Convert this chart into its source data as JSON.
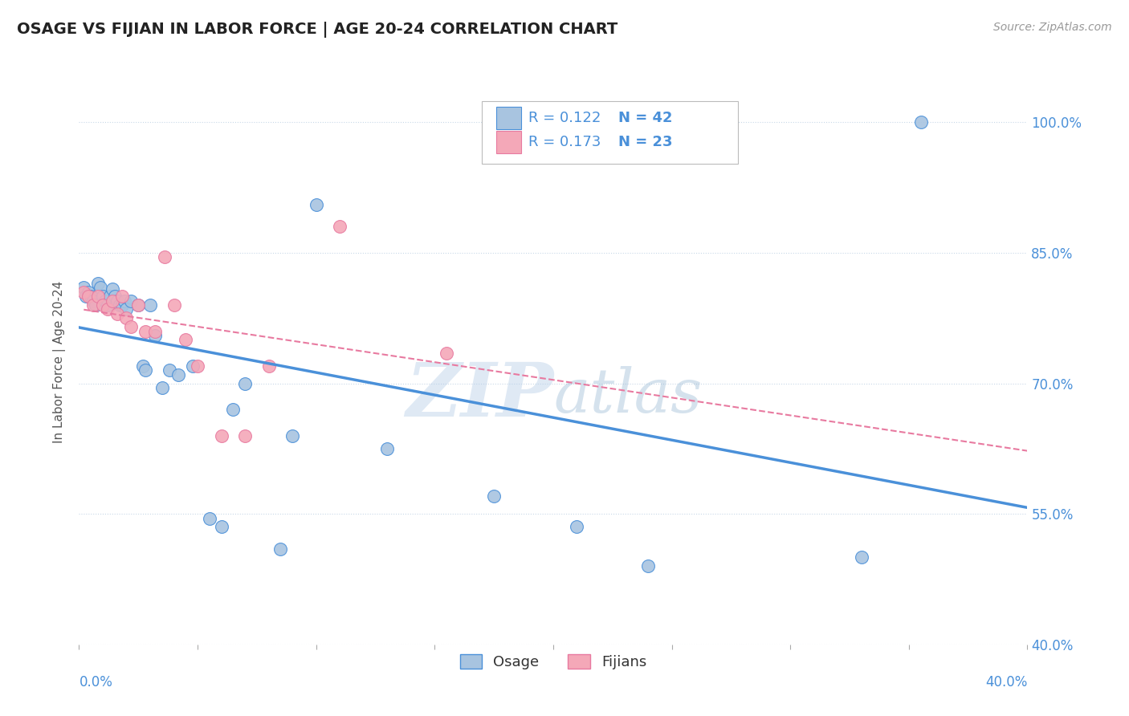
{
  "title": "OSAGE VS FIJIAN IN LABOR FORCE | AGE 20-24 CORRELATION CHART",
  "source_text": "Source: ZipAtlas.com",
  "ylabel": "In Labor Force | Age 20-24",
  "xlim": [
    0.0,
    0.4
  ],
  "ylim": [
    0.4,
    1.05
  ],
  "yticks": [
    0.4,
    0.55,
    0.7,
    0.85,
    1.0
  ],
  "ytick_labels": [
    "40.0%",
    "55.0%",
    "70.0%",
    "85.0%",
    "100.0%"
  ],
  "xtick_labels": [
    "0.0%",
    "40.0%"
  ],
  "osage_color": "#a8c4e0",
  "fijian_color": "#f4a8b8",
  "osage_line_color": "#4a90d9",
  "fijian_line_color": "#e87aa0",
  "legend_R_osage": "R = 0.122",
  "legend_N_osage": "N = 42",
  "legend_R_fijian": "R = 0.173",
  "legend_N_fijian": "N = 23",
  "osage_x": [
    0.002,
    0.003,
    0.004,
    0.005,
    0.006,
    0.007,
    0.008,
    0.009,
    0.01,
    0.011,
    0.012,
    0.013,
    0.014,
    0.015,
    0.016,
    0.017,
    0.018,
    0.019,
    0.02,
    0.022,
    0.025,
    0.027,
    0.028,
    0.03,
    0.032,
    0.035,
    0.038,
    0.042,
    0.048,
    0.055,
    0.06,
    0.065,
    0.07,
    0.085,
    0.09,
    0.1,
    0.13,
    0.175,
    0.21,
    0.24,
    0.33,
    0.355
  ],
  "osage_y": [
    0.81,
    0.8,
    0.805,
    0.8,
    0.795,
    0.79,
    0.815,
    0.81,
    0.8,
    0.795,
    0.79,
    0.8,
    0.808,
    0.8,
    0.795,
    0.79,
    0.79,
    0.795,
    0.785,
    0.795,
    0.79,
    0.72,
    0.715,
    0.79,
    0.755,
    0.695,
    0.715,
    0.71,
    0.72,
    0.545,
    0.535,
    0.67,
    0.7,
    0.51,
    0.64,
    0.905,
    0.625,
    0.57,
    0.535,
    0.49,
    0.5,
    1.0
  ],
  "fijian_x": [
    0.002,
    0.004,
    0.006,
    0.008,
    0.01,
    0.012,
    0.014,
    0.016,
    0.018,
    0.02,
    0.022,
    0.025,
    0.028,
    0.032,
    0.036,
    0.04,
    0.045,
    0.05,
    0.06,
    0.07,
    0.08,
    0.11,
    0.155
  ],
  "fijian_y": [
    0.805,
    0.8,
    0.79,
    0.8,
    0.79,
    0.785,
    0.795,
    0.78,
    0.8,
    0.775,
    0.765,
    0.79,
    0.76,
    0.76,
    0.845,
    0.79,
    0.75,
    0.72,
    0.64,
    0.64,
    0.72,
    0.88,
    0.735
  ],
  "watermark_zip": "ZIP",
  "watermark_atlas": "atlas",
  "background_color": "#ffffff",
  "grid_color": "#c8d8e8"
}
